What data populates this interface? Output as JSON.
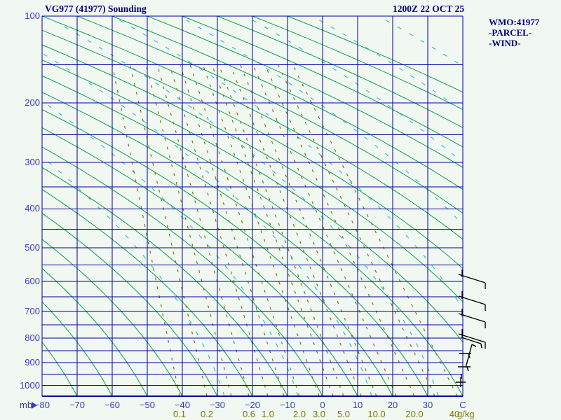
{
  "header": {
    "title": "VG977 (41977) Sounding",
    "datetime": "1200Z 22 OCT 25"
  },
  "legend": {
    "wmo": "WMO:41977",
    "parcel": "-PARCEL-",
    "wind": "-WIND-"
  },
  "axes": {
    "pressure": {
      "unit": "mb",
      "ticks": [
        "100",
        "200",
        "300",
        "400",
        "500",
        "600",
        "700",
        "800",
        "900",
        "1000"
      ]
    },
    "temperature": {
      "unit": "C",
      "ticks": [
        "−80",
        "−70",
        "−60",
        "−50",
        "−40",
        "−30",
        "−20",
        "−10",
        "0",
        "10",
        "20",
        "30",
        "C"
      ]
    },
    "mixing_ratio": {
      "unit": "g/kg",
      "ticks": [
        "0.1",
        "0.2",
        "0.6",
        "1.0",
        "2.0",
        "3.0",
        "5.0",
        "10.0",
        "20.0",
        "40"
      ]
    }
  },
  "colors": {
    "background": "#F1F7F1",
    "grid_blue": "#0000A0",
    "tick_label_blue": "#3B3BC4",
    "header_navy": "#000087",
    "adiabat_green": "#0A9E4E",
    "moist_adiabat_cyan": "#35BBE4",
    "mixing_ratio_olive": "#7A7A00",
    "wind_barb_black": "#000000"
  },
  "chart_data": {
    "type": "stuve_sounding_diagram",
    "station_label": "VG977 (41977)",
    "wmo_id": "41977",
    "valid_time": "1200Z 22 OCT 25",
    "pressure_axis_mb": {
      "labeled_levels": [
        100,
        200,
        300,
        400,
        500,
        600,
        700,
        800,
        900,
        1000
      ],
      "isobar_step_mb": 50,
      "top_mb": 100,
      "bottom_mb": 1050,
      "scale": "p^0.286 (Stuve)"
    },
    "temperature_axis_c": {
      "min": -80,
      "max": 40,
      "step": 10,
      "unit": "C",
      "isotherms": "vertical blue lines"
    },
    "mixing_ratio_g_per_kg": [
      0.1,
      0.2,
      0.6,
      1.0,
      2.0,
      3.0,
      5.0,
      10.0,
      20.0,
      40
    ],
    "line_families": [
      {
        "name": "isobars",
        "style": "solid",
        "color": "#0000A0"
      },
      {
        "name": "isotherms",
        "style": "solid",
        "color": "#0000A0"
      },
      {
        "name": "dry_adiabats",
        "style": "solid",
        "color": "#0A9E4E"
      },
      {
        "name": "moist_adiabats",
        "style": "dashed",
        "color": "#35BBE4"
      },
      {
        "name": "mixing_ratio_lines",
        "style": "dashed",
        "color": "#7A7A00"
      }
    ],
    "wind_barbs_right_edge_levels_mb": [
      580,
      650,
      710,
      785,
      830,
      865,
      920,
      950,
      990
    ],
    "temperature_trace_plotted": false
  }
}
